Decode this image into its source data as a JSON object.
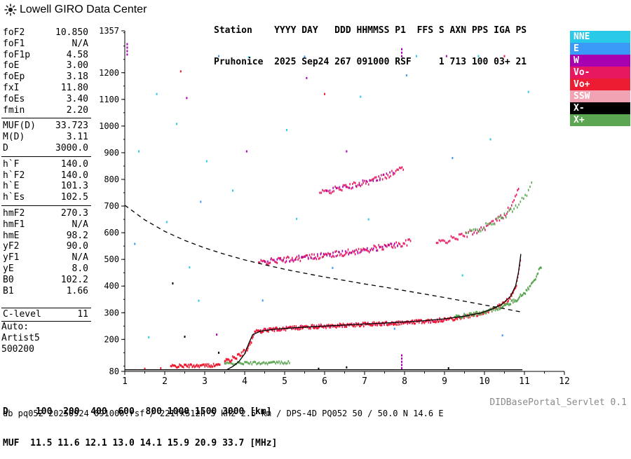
{
  "header": {
    "logo_text": "Lowell GIRO Data Center",
    "station_line1": "Station    YYYY DAY   DDD HHMMSS P1  FFS S AXN PPS IGA PS",
    "station_line2": "Pruhonice  2025 Sep24 267 091000 RSF     1 713 100 03+ 21"
  },
  "sidebar": {
    "groups": [
      {
        "rows": [
          [
            "foF2",
            "10.850"
          ],
          [
            "foF1",
            "N/A"
          ],
          [
            "foF1p",
            "4.58"
          ],
          [
            "foE",
            "3.00"
          ],
          [
            "foEp",
            "3.18"
          ],
          [
            "fxI",
            "11.80"
          ],
          [
            "foEs",
            "3.40"
          ],
          [
            "fmin",
            "2.20"
          ]
        ]
      },
      {
        "rows": [
          [
            "MUF(D)",
            "33.723"
          ],
          [
            "M(D)",
            "3.11"
          ],
          [
            "D",
            "3000.0"
          ]
        ]
      },
      {
        "rows": [
          [
            "h`F",
            "140.0"
          ],
          [
            "h`F2",
            "140.0"
          ],
          [
            "h`E",
            "101.3"
          ],
          [
            "h`Es",
            "102.5"
          ]
        ]
      },
      {
        "rows": [
          [
            "hmF2",
            "270.3"
          ],
          [
            "hmF1",
            "N/A"
          ],
          [
            "hmE",
            "98.2"
          ],
          [
            "yF2",
            "90.0"
          ],
          [
            "yF1",
            "N/A"
          ],
          [
            "yE",
            "8.0"
          ],
          [
            "B0",
            "102.2"
          ],
          [
            "B1",
            "1.66"
          ]
        ]
      }
    ],
    "c_level": {
      "label": "C-level",
      "value": "11"
    },
    "auto_lines": [
      "Auto:",
      "Artist5",
      "500200"
    ]
  },
  "legend": {
    "items": [
      {
        "label": "NNE",
        "color": "#29C9E8"
      },
      {
        "label": "E",
        "color": "#3B99F8"
      },
      {
        "label": "W",
        "color": "#A800B0"
      },
      {
        "label": "Vo-",
        "color": "#E81860"
      },
      {
        "label": "Vo+",
        "color": "#EE1C33"
      },
      {
        "label": "SSW",
        "color": "#F2A3B3"
      },
      {
        "label": "X-",
        "color": "#000000"
      },
      {
        "label": "X+",
        "color": "#5BA653"
      }
    ]
  },
  "footer": {
    "d_line": "D     100  200  400  600  800 1000 1500 3000 [km]",
    "muf_line": "MUF  11.5 11.6 12.1 13.0 14.1 15.9 20.9 33.7 [MHz]",
    "info_line": "db pq052 20250924 091000.rsf / 221fx512h 5 kHz 2.5 km / DPS-4D PQ052 50 / 50.0 N 14.6 E",
    "servlet_label": "DIDBasePortal_Servlet 0.1"
  },
  "chart_data": {
    "type": "scatter",
    "title": "",
    "x_axis": {
      "label": "",
      "min": 1,
      "max": 12,
      "ticks": [
        1,
        2,
        3,
        4,
        5,
        6,
        7,
        8,
        9,
        10,
        11,
        12
      ],
      "minor_tick_step": 0.5
    },
    "y_axis": {
      "label": "",
      "min": 80,
      "max": 1357,
      "labeled_ticks": [
        1357,
        1200,
        1100,
        1000,
        900,
        800,
        700,
        600,
        500,
        400,
        300,
        200,
        80
      ],
      "minor_tick_step": 50
    },
    "readouts": {
      "foF2": 10.85,
      "fxI": 11.8,
      "foEs": 3.4,
      "fmin": 2.2,
      "hmF2": 270.3,
      "MUF_3000": 33.723
    },
    "curves": [
      {
        "name": "transmission-curve",
        "style": "dashed",
        "color": "#000000",
        "points": [
          [
            1,
            703
          ],
          [
            1.5,
            648
          ],
          [
            2,
            605
          ],
          [
            2.5,
            571
          ],
          [
            3,
            543
          ],
          [
            3.5,
            519
          ],
          [
            4,
            498
          ],
          [
            4.5,
            480
          ],
          [
            5,
            463
          ],
          [
            5.5,
            448
          ],
          [
            6,
            434
          ],
          [
            6.5,
            421
          ],
          [
            7,
            408
          ],
          [
            7.5,
            396
          ],
          [
            8,
            383
          ],
          [
            8.5,
            370
          ],
          [
            9,
            357
          ],
          [
            9.5,
            343
          ],
          [
            10,
            329
          ],
          [
            10.4,
            318
          ],
          [
            10.7,
            309
          ],
          [
            10.95,
            302
          ]
        ]
      },
      {
        "name": "artist-otrace-fit",
        "style": "solid",
        "color": "#000000",
        "points": [
          [
            3.55,
            86
          ],
          [
            3.7,
            98
          ],
          [
            3.85,
            116
          ],
          [
            4.0,
            146
          ],
          [
            4.1,
            184
          ],
          [
            4.2,
            218
          ],
          [
            4.4,
            231
          ],
          [
            4.8,
            239
          ],
          [
            5.4,
            245
          ],
          [
            6.0,
            250
          ],
          [
            6.8,
            256
          ],
          [
            7.6,
            262
          ],
          [
            8.4,
            269
          ],
          [
            9.0,
            277
          ],
          [
            9.5,
            287
          ],
          [
            9.9,
            299
          ],
          [
            10.2,
            314
          ],
          [
            10.45,
            333
          ],
          [
            10.65,
            361
          ],
          [
            10.78,
            402
          ],
          [
            10.85,
            450
          ],
          [
            10.89,
            495
          ],
          [
            10.91,
            520
          ]
        ]
      },
      {
        "name": "baseline",
        "style": "solid",
        "color": "#000000",
        "points": [
          [
            1,
            86
          ],
          [
            10.95,
            86
          ]
        ]
      }
    ],
    "dot_series": [
      {
        "name": "es-trace-O",
        "color": "#EE1C33",
        "jitter": 6,
        "step": 0.02,
        "points": [
          [
            2.15,
            99
          ],
          [
            2.65,
            101
          ],
          [
            3.1,
            102
          ],
          [
            3.4,
            104
          ]
        ]
      },
      {
        "name": "es-trace-X",
        "color": "#5BA653",
        "jitter": 5,
        "step": 0.03,
        "points": [
          [
            3.5,
            109
          ],
          [
            4.0,
            111
          ],
          [
            4.6,
            112
          ],
          [
            5.15,
            114
          ]
        ]
      },
      {
        "name": "f-trace-foot",
        "color": "#EE1C33",
        "jitter": 9,
        "step": 0.02,
        "points": [
          [
            3.5,
            117
          ],
          [
            3.7,
            127
          ],
          [
            3.9,
            142
          ],
          [
            4.05,
            162
          ],
          [
            4.15,
            190
          ],
          [
            4.25,
            222
          ]
        ]
      },
      {
        "name": "f-trace-O",
        "color": "#EE1C33",
        "jitter": 7,
        "step": 0.022,
        "points": [
          [
            4.25,
            228
          ],
          [
            4.7,
            237
          ],
          [
            5.2,
            243
          ],
          [
            5.8,
            248
          ],
          [
            6.4,
            252
          ],
          [
            7.0,
            256
          ],
          [
            7.6,
            260
          ],
          [
            8.2,
            265
          ],
          [
            8.8,
            271
          ],
          [
            9.3,
            280
          ],
          [
            9.7,
            290
          ],
          [
            10.0,
            301
          ],
          [
            10.25,
            315
          ],
          [
            10.45,
            331
          ],
          [
            10.6,
            350
          ],
          [
            10.72,
            375
          ],
          [
            10.8,
            405
          ],
          [
            10.85,
            445
          ],
          [
            10.9,
            490
          ],
          [
            10.92,
            518
          ]
        ]
      },
      {
        "name": "f-trace-O-pink",
        "color": "#E81860",
        "jitter": 6,
        "step": 0.06,
        "points": [
          [
            4.4,
            233
          ],
          [
            5.1,
            242
          ],
          [
            5.8,
            248
          ],
          [
            6.5,
            253
          ],
          [
            7.2,
            258
          ],
          [
            7.9,
            262
          ],
          [
            8.6,
            269
          ],
          [
            9.1,
            276
          ]
        ]
      },
      {
        "name": "f-trace-X",
        "color": "#5BA653",
        "jitter": 7,
        "step": 0.022,
        "points": [
          [
            9.25,
            283
          ],
          [
            9.6,
            291
          ],
          [
            9.95,
            301
          ],
          [
            10.25,
            313
          ],
          [
            10.55,
            329
          ],
          [
            10.8,
            349
          ],
          [
            11.0,
            374
          ],
          [
            11.15,
            400
          ],
          [
            11.28,
            432
          ],
          [
            11.38,
            462
          ],
          [
            11.44,
            480
          ]
        ]
      },
      {
        "name": "hop2-F-pink",
        "color": "#E81860",
        "jitter": 11,
        "step": 0.03,
        "points": [
          [
            4.35,
            487
          ],
          [
            4.9,
            497
          ],
          [
            5.45,
            506
          ],
          [
            6.0,
            515
          ],
          [
            6.5,
            524
          ],
          [
            7.0,
            535
          ],
          [
            7.5,
            547
          ],
          [
            8.0,
            560
          ],
          [
            8.18,
            568
          ]
        ]
      },
      {
        "name": "hop2-F-magenta",
        "color": "#A800B0",
        "jitter": 9,
        "step": 0.08,
        "points": [
          [
            4.5,
            490
          ],
          [
            5.2,
            502
          ],
          [
            5.9,
            513
          ],
          [
            6.6,
            526
          ],
          [
            7.3,
            542
          ],
          [
            7.9,
            557
          ]
        ]
      },
      {
        "name": "hop3-F-pink",
        "color": "#E81860",
        "jitter": 11,
        "step": 0.035,
        "points": [
          [
            5.88,
            748
          ],
          [
            6.3,
            763
          ],
          [
            6.7,
            777
          ],
          [
            7.1,
            792
          ],
          [
            7.45,
            808
          ],
          [
            7.75,
            826
          ],
          [
            8.0,
            848
          ]
        ]
      },
      {
        "name": "hop3-F-magenta",
        "color": "#A800B0",
        "jitter": 9,
        "step": 0.09,
        "points": [
          [
            6.05,
            755
          ],
          [
            6.7,
            777
          ],
          [
            7.3,
            800
          ],
          [
            7.8,
            830
          ]
        ]
      },
      {
        "name": "hop2-nearfoF2-pink",
        "color": "#E81860",
        "jitter": 11,
        "step": 0.035,
        "points": [
          [
            8.8,
            560
          ],
          [
            9.2,
            577
          ],
          [
            9.6,
            596
          ],
          [
            9.95,
            616
          ],
          [
            10.25,
            640
          ],
          [
            10.5,
            668
          ],
          [
            10.68,
            700
          ],
          [
            10.8,
            740
          ],
          [
            10.88,
            790
          ]
        ]
      },
      {
        "name": "hop2-nearfoF2-green",
        "color": "#5BA653",
        "jitter": 11,
        "step": 0.045,
        "points": [
          [
            9.55,
            597
          ],
          [
            9.95,
            618
          ],
          [
            10.3,
            644
          ],
          [
            10.62,
            676
          ],
          [
            10.9,
            716
          ],
          [
            11.1,
            758
          ],
          [
            11.22,
            798
          ]
        ]
      }
    ],
    "speckles": [
      {
        "name": "noise-cyan",
        "color": "#29C9E8",
        "points": [
          [
            1.35,
            905
          ],
          [
            1.6,
            208
          ],
          [
            1.8,
            1120
          ],
          [
            2.05,
            640
          ],
          [
            2.3,
            1008
          ],
          [
            2.62,
            470
          ],
          [
            2.85,
            345
          ],
          [
            3.05,
            868
          ],
          [
            3.7,
            758
          ],
          [
            4.1,
            1258
          ],
          [
            5.05,
            985
          ],
          [
            5.3,
            652
          ],
          [
            6.35,
            528
          ],
          [
            6.9,
            1110
          ],
          [
            7.1,
            650
          ],
          [
            8.3,
            1262
          ],
          [
            9.45,
            440
          ],
          [
            9.85,
            1262
          ],
          [
            10.15,
            950
          ],
          [
            11.1,
            1128
          ]
        ]
      },
      {
        "name": "noise-blue",
        "color": "#3B99F8",
        "points": [
          [
            1.25,
            558
          ],
          [
            2.9,
            716
          ],
          [
            3.35,
            1262
          ],
          [
            4.45,
            346
          ],
          [
            5.5,
            1260
          ],
          [
            6.2,
            468
          ],
          [
            7.75,
            240
          ],
          [
            8.05,
            1190
          ],
          [
            9.2,
            880
          ],
          [
            10.45,
            215
          ]
        ]
      },
      {
        "name": "noise-magenta",
        "color": "#A800B0",
        "points": [
          [
            1.06,
            1268
          ],
          [
            1.06,
            1281
          ],
          [
            1.06,
            1294
          ],
          [
            1.06,
            1307
          ],
          [
            7.93,
            1262
          ],
          [
            7.93,
            1275
          ],
          [
            7.93,
            1288
          ],
          [
            7.93,
            92
          ],
          [
            7.93,
            104
          ],
          [
            7.93,
            116
          ],
          [
            7.93,
            128
          ],
          [
            7.93,
            140
          ],
          [
            2.55,
            1105
          ],
          [
            4.05,
            905
          ],
          [
            5.55,
            1180
          ],
          [
            6.55,
            905
          ],
          [
            9.05,
            1262
          ],
          [
            3.3,
            218
          ]
        ]
      },
      {
        "name": "noise-red",
        "color": "#EE1C33",
        "points": [
          [
            1.5,
            90
          ],
          [
            1.9,
            92
          ],
          [
            2.4,
            1205
          ],
          [
            6.0,
            1120
          ],
          [
            10.5,
            1262
          ]
        ]
      },
      {
        "name": "noise-black",
        "color": "#000000",
        "points": [
          [
            2.2,
            410
          ],
          [
            2.5,
            210
          ],
          [
            3.35,
            150
          ],
          [
            5.85,
            90
          ],
          [
            6.55,
            95
          ],
          [
            9.1,
            92
          ]
        ]
      }
    ]
  }
}
